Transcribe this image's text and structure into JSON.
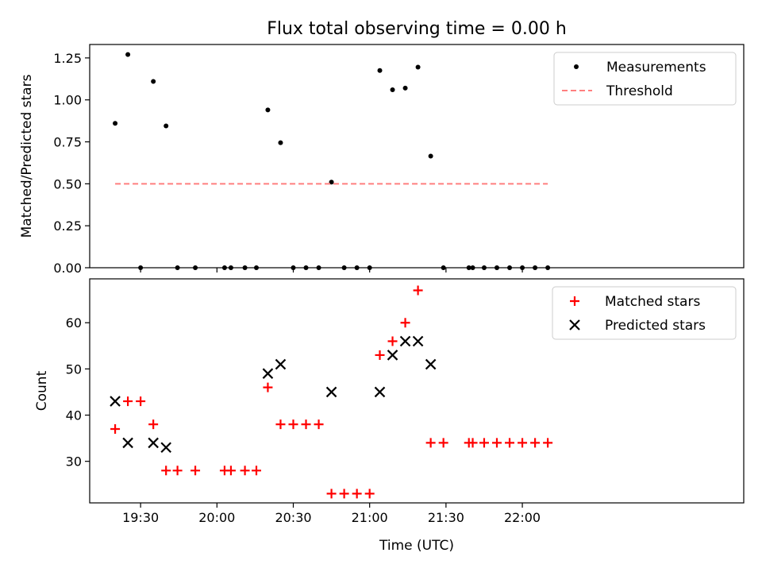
{
  "chart_data": {
    "title": "Flux total observing time = 0.00 h",
    "xlabel": "Time (UTC)",
    "x_unit": "minutes since 19:00 UTC",
    "xlim": [
      10,
      267
    ],
    "x_ticks": [
      {
        "value": 30,
        "label": "19:30"
      },
      {
        "value": 60,
        "label": "20:00"
      },
      {
        "value": 90,
        "label": "20:30"
      },
      {
        "value": 120,
        "label": "21:00"
      },
      {
        "value": 150,
        "label": "21:30"
      },
      {
        "value": 180,
        "label": "22:00"
      }
    ],
    "panels": [
      {
        "type": "scatter",
        "ylabel": "Matched/Predicted stars",
        "ylim": [
          0,
          1.33
        ],
        "y_ticks": [
          "0.00",
          "0.25",
          "0.50",
          "0.75",
          "1.00",
          "1.25"
        ],
        "y_tick_values": [
          0,
          0.25,
          0.5,
          0.75,
          1.0,
          1.25
        ],
        "legend": "top-right",
        "series": [
          {
            "name": "Measurements",
            "marker": "dot",
            "color": "#000000",
            "x": [
              20,
              25,
              30,
              35,
              40,
              44.5,
              51.5,
              63,
              65.5,
              71,
              75.5,
              80,
              85,
              90,
              95,
              100,
              105,
              110,
              115,
              120,
              124,
              129,
              134,
              139,
              144,
              149,
              159,
              160.5,
              165,
              170,
              175,
              180,
              185,
              190
            ],
            "y": [
              0.86,
              1.27,
              0,
              1.11,
              0.845,
              0,
              0,
              0,
              0,
              0,
              0,
              0.94,
              0.745,
              0,
              0,
              0,
              0.51,
              0,
              0,
              0,
              1.175,
              1.06,
              1.07,
              1.195,
              0.665,
              0,
              0,
              0,
              0,
              0,
              0,
              0,
              0,
              0
            ]
          },
          {
            "name": "Threshold",
            "marker": "dashed-line",
            "color": "#ff7f7f",
            "x": [
              20,
              190
            ],
            "y": [
              0.5,
              0.5
            ]
          }
        ]
      },
      {
        "type": "scatter",
        "ylabel": "Count",
        "ylim": [
          21,
          69.5
        ],
        "y_ticks": [
          "30",
          "40",
          "50",
          "60"
        ],
        "y_tick_values": [
          30,
          40,
          50,
          60
        ],
        "legend": "top-right",
        "series": [
          {
            "name": "Matched stars",
            "marker": "plus",
            "color": "#ff0000",
            "x": [
              20,
              25,
              30,
              35,
              40,
              44.5,
              51.5,
              63,
              65.5,
              71,
              75.5,
              80,
              85,
              90,
              95,
              100,
              105,
              110,
              115,
              120,
              124,
              129,
              134,
              139,
              144,
              149,
              159,
              160.5,
              165,
              170,
              175,
              180,
              185,
              190
            ],
            "y": [
              37,
              43,
              43,
              38,
              28,
              28,
              28,
              28,
              28,
              28,
              28,
              46,
              38,
              38,
              38,
              38,
              23,
              23,
              23,
              23,
              53,
              56,
              60,
              67,
              34,
              34,
              34,
              34,
              34,
              34,
              34,
              34,
              34,
              34
            ]
          },
          {
            "name": "Predicted stars",
            "marker": "x",
            "color": "#000000",
            "x": [
              20,
              25,
              35,
              40,
              80,
              85,
              105,
              124,
              129,
              134,
              139,
              144
            ],
            "y": [
              43,
              34,
              34,
              33,
              49,
              51,
              45,
              45,
              53,
              56,
              56,
              51
            ]
          }
        ]
      }
    ]
  }
}
